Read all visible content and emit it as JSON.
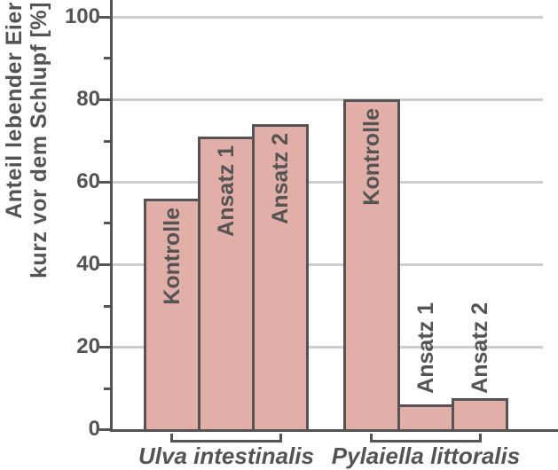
{
  "chart_data": {
    "type": "bar",
    "title": "",
    "ylabel": "Anteil lebender Eier kurz vor dem Schlupf [%]",
    "ylabel_line1": "Anteil lebender Eier",
    "ylabel_line2": "kurz vor dem Schlupf [%]",
    "xlabel": "",
    "ylim": [
      0,
      100
    ],
    "yticks": [
      0,
      20,
      40,
      60,
      80,
      100
    ],
    "minor_yticks": [
      10,
      30,
      50,
      70,
      90
    ],
    "grid": "horizontal-major",
    "legend": "none",
    "categories": [
      "Kontrolle",
      "Ansatz 1",
      "Ansatz 2"
    ],
    "groups": [
      {
        "label": "Ulva intestinalis",
        "bars": [
          {
            "label": "Kontrolle",
            "value": 56
          },
          {
            "label": "Ansatz 1",
            "value": 71
          },
          {
            "label": "Ansatz 2",
            "value": 74
          }
        ]
      },
      {
        "label": "Pylaiella littoralis",
        "bars": [
          {
            "label": "Kontrolle",
            "value": 80
          },
          {
            "label": "Ansatz 1",
            "value": 6
          },
          {
            "label": "Ansatz 2",
            "value": 7.5
          }
        ]
      }
    ],
    "colors": {
      "bar_fill": "#e2aea8",
      "bar_border": "#545454",
      "axis": "#545454",
      "grid_line": "#cdcdcd",
      "text": "#545454"
    }
  }
}
